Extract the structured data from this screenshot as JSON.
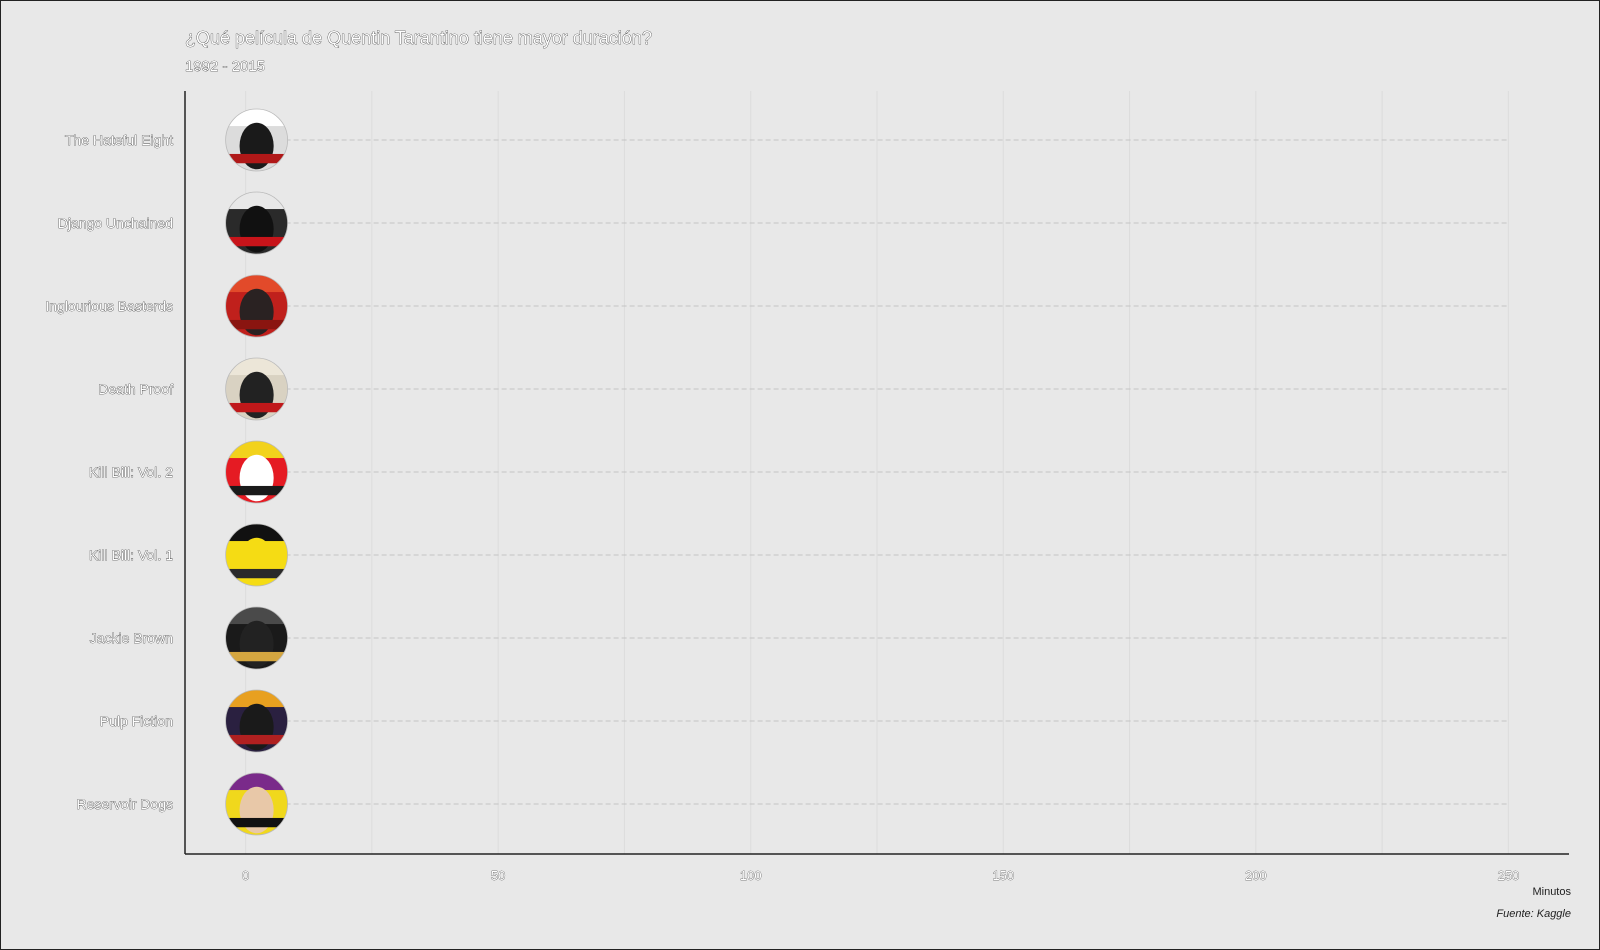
{
  "chart_data": {
    "type": "bar",
    "title": "¿Qué película de Quentin Tarantino tiene mayor duración?",
    "subtitle": "1992 - 2015",
    "xlabel": "Minutos",
    "ylabel": "",
    "caption": "Fuente: Kaggle",
    "orientation": "horizontal",
    "xlim": [
      -12,
      262
    ],
    "xticks": [
      0,
      50,
      100,
      150,
      200,
      250
    ],
    "xtick_labels": [
      "0",
      "50",
      "100",
      "150",
      "200",
      "250"
    ],
    "grid": true,
    "categories": [
      "The Hateful Eight",
      "Django Unchained",
      "Inglourious Basterds",
      "Death Proof",
      "Kill Bill: Vol. 2",
      "Kill Bill: Vol. 1",
      "Jackie Brown",
      "Pulp Fiction",
      "Reservoir Dogs"
    ],
    "values": [
      0,
      0,
      0,
      0,
      0,
      0,
      0,
      0,
      0
    ],
    "markers": [
      {
        "film": "The Hateful Eight",
        "colors": [
          "#dcdcdc",
          "#ffffff",
          "#1a1a1a",
          "#b01818"
        ]
      },
      {
        "film": "Django Unchained",
        "colors": [
          "#2a2a2a",
          "#e8e8e8",
          "#111111",
          "#c8141a"
        ]
      },
      {
        "film": "Inglourious Basterds",
        "colors": [
          "#c0201c",
          "#e24a2a",
          "#2a2222",
          "#8a1510"
        ]
      },
      {
        "film": "Death Proof",
        "colors": [
          "#d9d2c2",
          "#ece6d8",
          "#222222",
          "#c0181a"
        ]
      },
      {
        "film": "Kill Bill: Vol. 2",
        "colors": [
          "#e51b23",
          "#f2d21c",
          "#ffffff",
          "#1a1a1a"
        ]
      },
      {
        "film": "Kill Bill: Vol. 1",
        "colors": [
          "#f5dc14",
          "#111111",
          "#f5dc14",
          "#2a2a2a"
        ]
      },
      {
        "film": "Jackie Brown",
        "colors": [
          "#1a1a1a",
          "#4a4a4a",
          "#222222",
          "#d4a640"
        ]
      },
      {
        "film": "Pulp Fiction",
        "colors": [
          "#2a2040",
          "#e8a020",
          "#1a1a1a",
          "#b02020"
        ]
      },
      {
        "film": "Reservoir Dogs",
        "colors": [
          "#f0d81c",
          "#7a2a8a",
          "#e8c8a8",
          "#111111"
        ]
      }
    ]
  }
}
